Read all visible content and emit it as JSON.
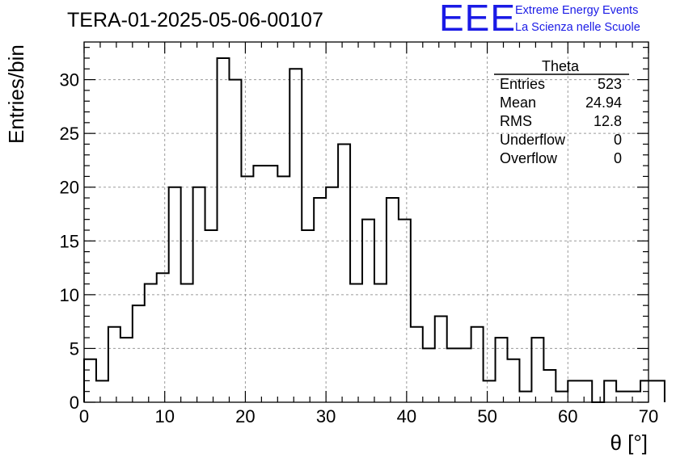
{
  "logo": {
    "mark": "EEE",
    "line1": "Extreme Energy Events",
    "line2": "La Scienza nelle Scuole",
    "color": "#1a1ae6"
  },
  "chart_data": {
    "type": "bar",
    "title": "TERA-01-2025-05-06-00107",
    "xlabel": "θ [°]",
    "ylabel": "Entries/bin",
    "xlim": [
      0,
      70
    ],
    "ylim": [
      0,
      33.5
    ],
    "xticks": [
      0,
      10,
      20,
      30,
      40,
      50,
      60,
      70
    ],
    "yticks": [
      0,
      5,
      10,
      15,
      20,
      25,
      30
    ],
    "grid": true,
    "bin_width": 1.5,
    "bin_edges_start": 0,
    "values": [
      4,
      2,
      7,
      6,
      9,
      11,
      12,
      20,
      11,
      20,
      16,
      32,
      30,
      21,
      22,
      22,
      21,
      31,
      16,
      19,
      20,
      24,
      11,
      17,
      11,
      19,
      17,
      7,
      5,
      8,
      5,
      5,
      7,
      2,
      6,
      4,
      1,
      6,
      3,
      1,
      2,
      2,
      0,
      2,
      1,
      1,
      2,
      2
    ],
    "stats_box": {
      "name": "Theta",
      "position": "top-right",
      "rows": [
        {
          "label": "Entries",
          "value": "523"
        },
        {
          "label": "Mean",
          "value": "24.94"
        },
        {
          "label": "RMS",
          "value": "12.8"
        },
        {
          "label": "Underflow",
          "value": "0"
        },
        {
          "label": "Overflow",
          "value": "0"
        }
      ]
    }
  }
}
